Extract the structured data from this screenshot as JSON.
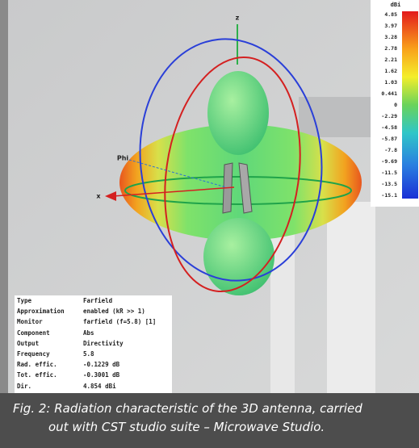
{
  "scene": {
    "axis_labels": [
      "z",
      "x",
      "Phi"
    ]
  },
  "color_scale": {
    "unit": "dBi",
    "labels": [
      "4.85",
      "3.97",
      "3.28",
      "2.78",
      "2.21",
      "1.62",
      "1.03",
      "0.441",
      "0",
      "-2.29",
      "-4.58",
      "-5.87",
      "-7.8",
      "-9.69",
      "-11.5",
      "-13.5",
      "-15.1"
    ]
  },
  "info_table": {
    "rows": [
      [
        "Type",
        "Farfield"
      ],
      [
        "Approximation",
        "enabled (kR >> 1)"
      ],
      [
        "Monitor",
        "farfield (f=5.8) [1]"
      ],
      [
        "Component",
        "Abs"
      ],
      [
        "Output",
        "Directivity"
      ],
      [
        "Frequency",
        "5.8"
      ],
      [
        "Rad. effic.",
        "-0.1229 dB"
      ],
      [
        "Tot. effic.",
        "-0.3001 dB"
      ],
      [
        "Dir.",
        "4.854 dBi"
      ]
    ]
  },
  "caption": {
    "lines": [
      "Fig. 2:  Radiation characteristic of the 3D antenna, carried",
      "out with CST studio suite – Microwave Studio."
    ]
  }
}
